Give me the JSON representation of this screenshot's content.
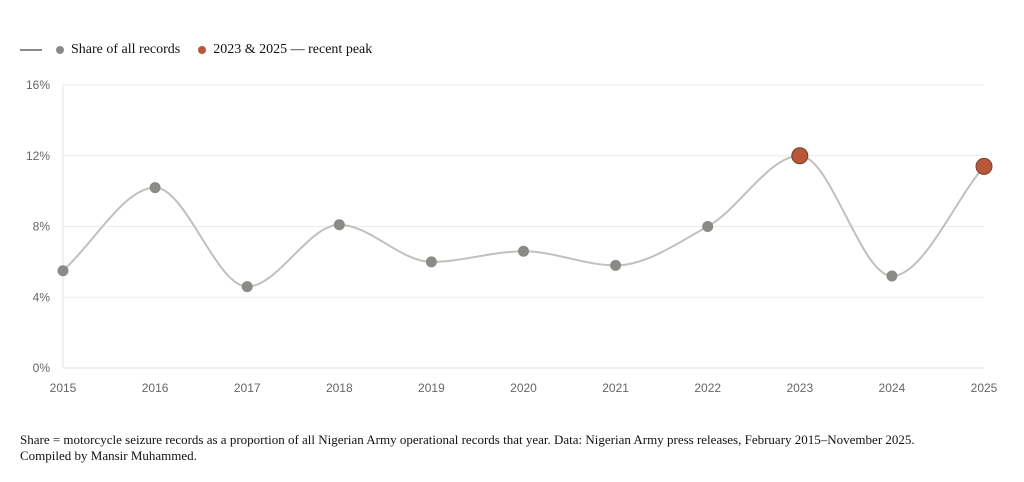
{
  "legend": {
    "series_label": "Share of all records",
    "highlight_label": "2023 & 2025 — recent peak"
  },
  "caption": {
    "line1": "Share = motorcycle seizure records as a proportion of all Nigerian Army operational records that year. Data: Nigerian Army press releases, February 2015–November 2025.",
    "line2": "Compiled by Mansir Muhammed."
  },
  "chart_data": {
    "type": "line",
    "title": "",
    "xlabel": "",
    "ylabel": "",
    "x": [
      "2015",
      "2016",
      "2017",
      "2018",
      "2019",
      "2020",
      "2021",
      "2022",
      "2023",
      "2024",
      "2025"
    ],
    "series": [
      {
        "name": "Share of all records",
        "values": [
          5.5,
          10.2,
          4.6,
          8.1,
          6.0,
          6.6,
          5.8,
          8.0,
          12.0,
          5.2,
          11.4
        ],
        "color": "#8a8a87",
        "line_color": "#c2c0bd"
      }
    ],
    "highlight": {
      "name": "2023 & 2025 — recent peak",
      "x": [
        "2023",
        "2025"
      ],
      "color": "#b8573a"
    },
    "ylim": [
      0,
      16
    ],
    "yticks": [
      0,
      4,
      8,
      12,
      16
    ],
    "ytick_labels": [
      "0%",
      "4%",
      "8%",
      "12%",
      "16%"
    ],
    "grid": true,
    "legend_position": "top-left"
  }
}
